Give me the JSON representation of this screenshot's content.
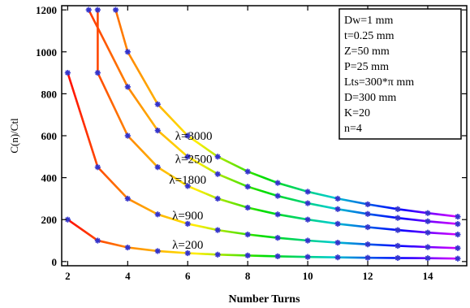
{
  "chart_data": {
    "type": "line",
    "xlabel": "Number Turns",
    "ylabel": "C(n)/Ctl",
    "xlim": [
      1.8,
      15.3
    ],
    "ylim": [
      -20,
      1220
    ],
    "xticks": [
      2,
      4,
      6,
      8,
      10,
      12,
      14
    ],
    "yticks": [
      0,
      200,
      400,
      600,
      800,
      1000,
      1200
    ],
    "x": [
      2,
      3,
      4,
      5,
      6,
      7,
      8,
      9,
      10,
      11,
      12,
      13,
      14,
      15
    ],
    "series": [
      {
        "name": "λ=200",
        "values": [
          200,
          100,
          67,
          50,
          40,
          33,
          29,
          25,
          22,
          20,
          18,
          17,
          16,
          14
        ]
      },
      {
        "name": "λ=900",
        "values": [
          900,
          450,
          300,
          225,
          180,
          150,
          129,
          113,
          100,
          90,
          82,
          75,
          69,
          64
        ]
      },
      {
        "name": "λ=1800",
        "values": [
          null,
          900,
          600,
          450,
          360,
          300,
          257,
          225,
          200,
          180,
          164,
          150,
          138,
          129
        ]
      },
      {
        "name": "λ=2500",
        "values": [
          null,
          null,
          833,
          625,
          500,
          417,
          357,
          313,
          278,
          250,
          227,
          208,
          192,
          179
        ]
      },
      {
        "name": "λ=3000",
        "values": [
          null,
          null,
          1000,
          750,
          600,
          500,
          429,
          375,
          333,
          300,
          273,
          250,
          231,
          214
        ]
      }
    ],
    "extra_points": [
      {
        "series": "λ=2500",
        "x": 2.7,
        "y": 1200
      },
      {
        "series": "λ=1800",
        "x": 3.0,
        "y": 1200
      },
      {
        "series": "λ=3000",
        "x": 3.6,
        "y": 1200
      }
    ],
    "legend_box": [
      "Dw=1 mm",
      "t=0.25 mm",
      "Z=50 mm",
      "P=25 mm",
      "Lts=300*π mm",
      "D=300 mm",
      "K=20",
      "n=4"
    ],
    "marker": "asterisk",
    "marker_color": "#3333cc",
    "gradient_colors": [
      "#ff0000",
      "#ff8800",
      "#ffee00",
      "#00dd00",
      "#00cccc",
      "#0000ff",
      "#ff00ff"
    ],
    "grid": false,
    "legend_position": "top-right"
  }
}
